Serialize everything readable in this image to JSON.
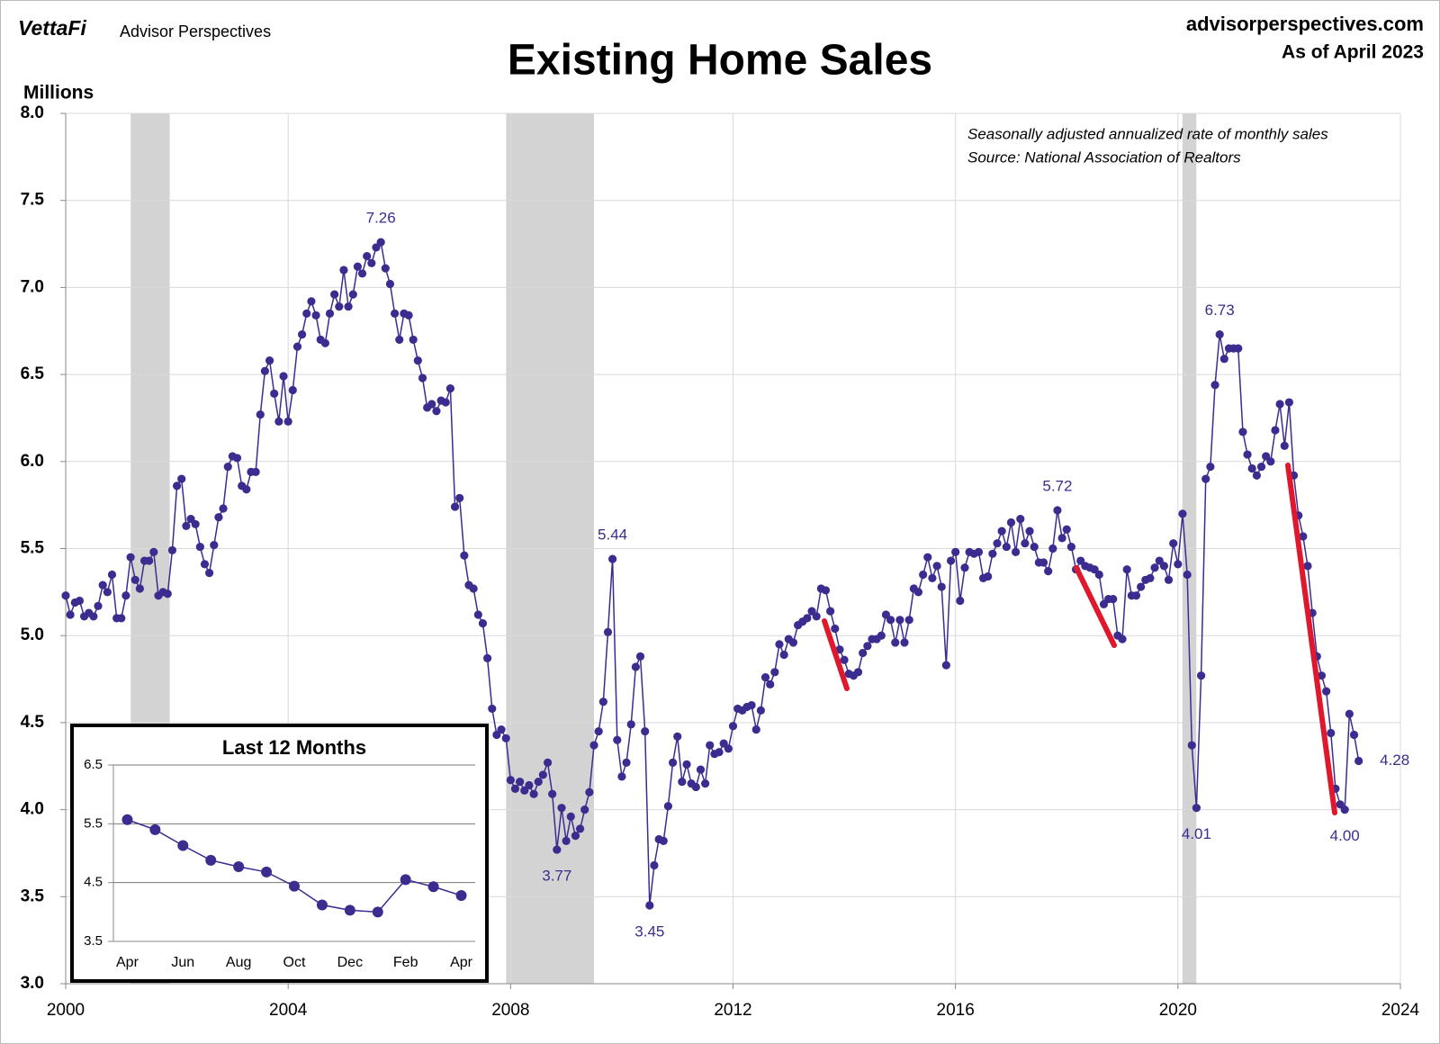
{
  "header": {
    "brand": "VettaFi",
    "brand_sub": "Advisor Perspectives",
    "site": "advisorperspectives.com",
    "as_of": "As of April 2023"
  },
  "chart_data": [
    {
      "type": "line",
      "title": "Existing Home Sales",
      "ylabel": "Millions",
      "annotations": [
        "Seasonally adjusted annualized rate of monthly sales",
        "Source: National Association of Realtors"
      ],
      "xlim": [
        2000,
        2024
      ],
      "xticks": [
        2000,
        2004,
        2008,
        2012,
        2016,
        2020,
        2024
      ],
      "ylim": [
        3,
        8
      ],
      "yticks": [
        {
          "value": 3,
          "label": "3.0"
        },
        3.5,
        {
          "value": 4,
          "label": "4.0"
        },
        4.5,
        {
          "value": 5,
          "label": "5.0"
        },
        5.5,
        {
          "value": 6,
          "label": "6.0"
        },
        6.5,
        {
          "value": 7,
          "label": "7.0"
        },
        7.5,
        {
          "value": 8,
          "label": "8.0"
        }
      ],
      "grid": true,
      "shaded_ranges": [
        [
          2001.17,
          2001.87
        ],
        [
          2007.92,
          2009.5
        ],
        [
          2020.08,
          2020.33
        ]
      ],
      "shade_color": "#d3d3d3",
      "x": [
        2000,
        2000.083,
        2000.167,
        2000.25,
        2000.333,
        2000.417,
        2000.5,
        2000.583,
        2000.667,
        2000.75,
        2000.833,
        2000.917,
        2001,
        2001.083,
        2001.167,
        2001.25,
        2001.333,
        2001.417,
        2001.5,
        2001.583,
        2001.667,
        2001.75,
        2001.833,
        2001.917,
        2002,
        2002.083,
        2002.167,
        2002.25,
        2002.333,
        2002.417,
        2002.5,
        2002.583,
        2002.667,
        2002.75,
        2002.833,
        2002.917,
        2003,
        2003.083,
        2003.167,
        2003.25,
        2003.333,
        2003.417,
        2003.5,
        2003.583,
        2003.667,
        2003.75,
        2003.833,
        2003.917,
        2004,
        2004.083,
        2004.167,
        2004.25,
        2004.333,
        2004.417,
        2004.5,
        2004.583,
        2004.667,
        2004.75,
        2004.833,
        2004.917,
        2005,
        2005.083,
        2005.167,
        2005.25,
        2005.333,
        2005.417,
        2005.5,
        2005.583,
        2005.667,
        2005.75,
        2005.833,
        2005.917,
        2006,
        2006.083,
        2006.167,
        2006.25,
        2006.333,
        2006.417,
        2006.5,
        2006.583,
        2006.667,
        2006.75,
        2006.833,
        2006.917,
        2007,
        2007.083,
        2007.167,
        2007.25,
        2007.333,
        2007.417,
        2007.5,
        2007.583,
        2007.667,
        2007.75,
        2007.833,
        2007.917,
        2008,
        2008.083,
        2008.167,
        2008.25,
        2008.333,
        2008.417,
        2008.5,
        2008.583,
        2008.667,
        2008.75,
        2008.833,
        2008.917,
        2009,
        2009.083,
        2009.167,
        2009.25,
        2009.333,
        2009.417,
        2009.5,
        2009.583,
        2009.667,
        2009.75,
        2009.833,
        2009.917,
        2010,
        2010.083,
        2010.167,
        2010.25,
        2010.333,
        2010.417,
        2010.5,
        2010.583,
        2010.667,
        2010.75,
        2010.833,
        2010.917,
        2011,
        2011.083,
        2011.167,
        2011.25,
        2011.333,
        2011.417,
        2011.5,
        2011.583,
        2011.667,
        2011.75,
        2011.833,
        2011.917,
        2012,
        2012.083,
        2012.167,
        2012.25,
        2012.333,
        2012.417,
        2012.5,
        2012.583,
        2012.667,
        2012.75,
        2012.833,
        2012.917,
        2013,
        2013.083,
        2013.167,
        2013.25,
        2013.333,
        2013.417,
        2013.5,
        2013.583,
        2013.667,
        2013.75,
        2013.833,
        2013.917,
        2014,
        2014.083,
        2014.167,
        2014.25,
        2014.333,
        2014.417,
        2014.5,
        2014.583,
        2014.667,
        2014.75,
        2014.833,
        2014.917,
        2015,
        2015.083,
        2015.167,
        2015.25,
        2015.333,
        2015.417,
        2015.5,
        2015.583,
        2015.667,
        2015.75,
        2015.833,
        2015.917,
        2016,
        2016.083,
        2016.167,
        2016.25,
        2016.333,
        2016.417,
        2016.5,
        2016.583,
        2016.667,
        2016.75,
        2016.833,
        2016.917,
        2017,
        2017.083,
        2017.167,
        2017.25,
        2017.333,
        2017.417,
        2017.5,
        2017.583,
        2017.667,
        2017.75,
        2017.833,
        2017.917,
        2018,
        2018.083,
        2018.167,
        2018.25,
        2018.333,
        2018.417,
        2018.5,
        2018.583,
        2018.667,
        2018.75,
        2018.833,
        2018.917,
        2019,
        2019.083,
        2019.167,
        2019.25,
        2019.333,
        2019.417,
        2019.5,
        2019.583,
        2019.667,
        2019.75,
        2019.833,
        2019.917,
        2020,
        2020.083,
        2020.167,
        2020.25,
        2020.333,
        2020.417,
        2020.5,
        2020.583,
        2020.667,
        2020.75,
        2020.833,
        2020.917,
        2021,
        2021.083,
        2021.167,
        2021.25,
        2021.333,
        2021.417,
        2021.5,
        2021.583,
        2021.667,
        2021.75,
        2021.833,
        2021.917,
        2022,
        2022.083,
        2022.167,
        2022.25,
        2022.333,
        2022.417,
        2022.5,
        2022.583,
        2022.667,
        2022.75,
        2022.833,
        2022.917,
        2023,
        2023.083,
        2023.167,
        2023.25
      ],
      "series": [
        {
          "color": "#3b2d8f",
          "values": [
            5.23,
            5.12,
            5.19,
            5.2,
            5.11,
            5.13,
            5.11,
            5.17,
            5.29,
            5.25,
            5.35,
            5.1,
            5.1,
            5.23,
            5.45,
            5.32,
            5.27,
            5.43,
            5.43,
            5.48,
            5.23,
            5.25,
            5.24,
            5.49,
            5.86,
            5.9,
            5.63,
            5.67,
            5.64,
            5.51,
            5.41,
            5.36,
            5.52,
            5.68,
            5.73,
            5.97,
            6.03,
            6.02,
            5.86,
            5.84,
            5.94,
            5.94,
            6.27,
            6.52,
            6.58,
            6.39,
            6.23,
            6.49,
            6.23,
            6.41,
            6.66,
            6.73,
            6.85,
            6.92,
            6.84,
            6.7,
            6.68,
            6.85,
            6.96,
            6.89,
            7.1,
            6.89,
            6.96,
            7.12,
            7.08,
            7.18,
            7.14,
            7.23,
            7.26,
            7.11,
            7.02,
            6.85,
            6.7,
            6.85,
            6.84,
            6.7,
            6.58,
            6.48,
            6.31,
            6.33,
            6.29,
            6.35,
            6.34,
            6.42,
            5.74,
            5.79,
            5.46,
            5.29,
            5.27,
            5.12,
            5.07,
            4.87,
            4.58,
            4.43,
            4.46,
            4.41,
            4.17,
            4.12,
            4.16,
            4.11,
            4.14,
            4.09,
            4.16,
            4.2,
            4.27,
            4.09,
            3.77,
            4.01,
            3.82,
            3.96,
            3.85,
            3.89,
            4.0,
            4.1,
            4.37,
            4.45,
            4.62,
            5.02,
            5.44,
            4.4,
            4.19,
            4.27,
            4.49,
            4.82,
            4.88,
            4.45,
            3.45,
            3.68,
            3.83,
            3.82,
            4.02,
            4.27,
            4.42,
            4.16,
            4.26,
            4.15,
            4.13,
            4.23,
            4.15,
            4.37,
            4.32,
            4.33,
            4.38,
            4.35,
            4.48,
            4.58,
            4.57,
            4.59,
            4.6,
            4.46,
            4.57,
            4.76,
            4.72,
            4.79,
            4.95,
            4.89,
            4.98,
            4.96,
            5.06,
            5.08,
            5.1,
            5.14,
            5.11,
            5.27,
            5.26,
            5.14,
            5.04,
            4.92,
            4.86,
            4.78,
            4.77,
            4.79,
            4.9,
            4.94,
            4.98,
            4.98,
            5.0,
            5.12,
            5.09,
            4.96,
            5.09,
            4.96,
            5.09,
            5.27,
            5.25,
            5.35,
            5.45,
            5.33,
            5.4,
            5.28,
            4.83,
            5.43,
            5.48,
            5.2,
            5.39,
            5.48,
            5.47,
            5.48,
            5.33,
            5.34,
            5.47,
            5.53,
            5.6,
            5.51,
            5.65,
            5.48,
            5.67,
            5.53,
            5.6,
            5.51,
            5.42,
            5.42,
            5.37,
            5.5,
            5.72,
            5.56,
            5.61,
            5.51,
            5.38,
            5.43,
            5.4,
            5.39,
            5.38,
            5.35,
            5.18,
            5.21,
            5.21,
            5.0,
            4.98,
            5.38,
            5.23,
            5.23,
            5.28,
            5.32,
            5.33,
            5.39,
            5.43,
            5.4,
            5.32,
            5.53,
            5.41,
            5.7,
            5.35,
            4.37,
            4.01,
            4.77,
            5.9,
            5.97,
            6.44,
            6.73,
            6.59,
            6.65,
            6.65,
            6.65,
            6.17,
            6.04,
            5.96,
            5.92,
            5.97,
            6.03,
            6.0,
            6.18,
            6.33,
            6.09,
            6.34,
            5.92,
            5.69,
            5.57,
            5.4,
            5.13,
            4.88,
            4.77,
            4.68,
            4.44,
            4.12,
            4.03,
            4.0,
            4.55,
            4.43,
            4.28
          ],
          "value_labels": [
            null,
            null,
            null,
            null,
            null,
            null,
            null,
            null,
            null,
            null,
            null,
            null,
            null,
            null,
            null,
            null,
            null,
            null,
            null,
            null,
            null,
            null,
            null,
            null,
            null,
            null,
            null,
            null,
            null,
            null,
            null,
            null,
            null,
            null,
            null,
            null,
            null,
            null,
            null,
            null,
            null,
            null,
            null,
            null,
            null,
            null,
            null,
            null,
            null,
            null,
            null,
            null,
            null,
            null,
            null,
            null,
            null,
            null,
            null,
            null,
            null,
            null,
            null,
            null,
            null,
            null,
            null,
            null,
            "7.26",
            null,
            null,
            null,
            null,
            null,
            null,
            null,
            null,
            null,
            null,
            null,
            null,
            null,
            null,
            null,
            null,
            null,
            null,
            null,
            null,
            null,
            null,
            null,
            null,
            null,
            null,
            null,
            null,
            null,
            null,
            null,
            null,
            null,
            null,
            null,
            null,
            null,
            "3.77",
            null,
            null,
            null,
            null,
            null,
            null,
            null,
            null,
            null,
            null,
            null,
            "5.44",
            null,
            null,
            null,
            null,
            null,
            null,
            null,
            "3.45",
            null,
            null,
            null,
            null,
            null,
            null,
            null,
            null,
            null,
            null,
            null,
            null,
            null,
            null,
            null,
            null,
            null,
            null,
            null,
            null,
            null,
            null,
            null,
            null,
            null,
            null,
            null,
            null,
            null,
            null,
            null,
            null,
            null,
            null,
            null,
            null,
            null,
            null,
            null,
            null,
            null,
            null,
            null,
            null,
            null,
            null,
            null,
            null,
            null,
            null,
            null,
            null,
            null,
            null,
            null,
            null,
            null,
            null,
            null,
            null,
            null,
            null,
            null,
            null,
            null,
            null,
            null,
            null,
            null,
            null,
            null,
            null,
            null,
            null,
            null,
            null,
            null,
            null,
            null,
            null,
            null,
            null,
            null,
            null,
            null,
            null,
            null,
            "5.72",
            null,
            null,
            null,
            null,
            null,
            null,
            null,
            null,
            null,
            null,
            null,
            null,
            null,
            null,
            null,
            null,
            null,
            null,
            null,
            null,
            null,
            null,
            null,
            null,
            null,
            null,
            null,
            null,
            null,
            "4.01",
            null,
            null,
            null,
            null,
            "6.73",
            null,
            null,
            null,
            null,
            null,
            null,
            null,
            null,
            null,
            null,
            null,
            null,
            null,
            null,
            null,
            null,
            null,
            null,
            null,
            null,
            null,
            null,
            null,
            null,
            null,
            null,
            "4.00",
            null,
            null,
            "4.28"
          ]
        }
      ]
    },
    {
      "type": "line",
      "title": "Last 12 Months",
      "categories": [
        "Apr",
        null,
        "Jun",
        null,
        "Aug",
        null,
        "Oct",
        null,
        "Dec",
        null,
        "Feb",
        null,
        "Apr"
      ],
      "values": [
        5.57,
        5.4,
        5.13,
        4.88,
        4.77,
        4.68,
        4.44,
        4.12,
        4.03,
        4.0,
        4.55,
        4.43,
        4.28
      ],
      "color": "#3b2d8f",
      "ylim": [
        3.5,
        6.5
      ],
      "yticks": [
        3.5,
        4.5,
        5.5,
        6.5
      ],
      "grid": true
    }
  ]
}
